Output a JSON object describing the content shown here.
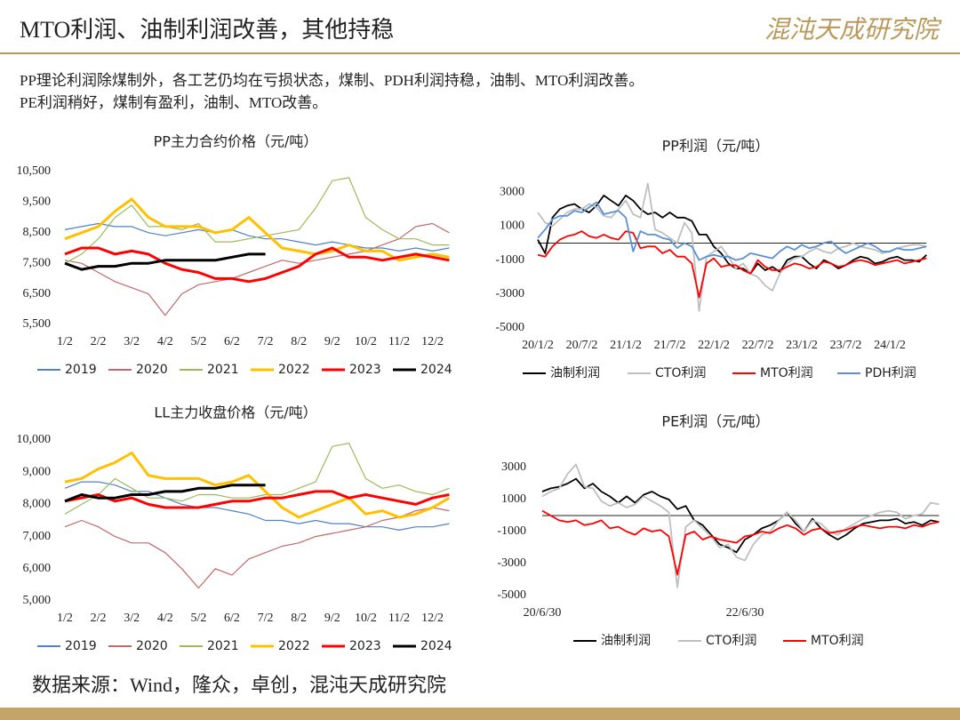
{
  "header": {
    "title": "MTO利润、油制利润改善，其他持稳",
    "logo": "混沌天成研究院"
  },
  "text": [
    "PP理论利润除煤制外，各工艺仍均在亏损状态，煤制、PDH利润持稳，油制、MTO利润改善。",
    "PE利润稍好，煤制有盈利，油制、MTO改善。"
  ],
  "source": "数据来源：Wind，隆众，卓创，混沌天成研究院",
  "chart_data": [
    {
      "type": "line",
      "title": "PP主力合约价格（元/吨）",
      "legend": "bottom",
      "categories": [
        "1/2",
        null,
        "2/2",
        null,
        "3/2",
        null,
        "4/2",
        null,
        "5/2",
        null,
        "6/2",
        null,
        "7/2",
        null,
        "8/2",
        null,
        "9/2",
        null,
        "10/2",
        null,
        "11/2",
        null,
        "12/2",
        null
      ],
      "ylim": [
        5500,
        10500
      ],
      "yticks": [
        {
          "value": 5500,
          "label": "5,500"
        },
        {
          "value": 6500,
          "label": "6,500"
        },
        {
          "value": 7500,
          "label": "7,500"
        },
        {
          "value": 8500,
          "label": "8,500"
        },
        {
          "value": 9500,
          "label": "9,500"
        },
        {
          "value": 10500,
          "label": "10,500"
        }
      ],
      "series": [
        {
          "name": "2019",
          "color": "#4f81c7",
          "width": 1.2,
          "values": [
            8600,
            8700,
            8800,
            8700,
            8700,
            8500,
            8400,
            8500,
            8600,
            8500,
            8600,
            8400,
            8300,
            8300,
            8200,
            8100,
            8200,
            8100,
            8000,
            8000,
            7900,
            8000,
            7900,
            8000
          ]
        },
        {
          "name": "2020",
          "color": "#c0696b",
          "width": 1.2,
          "values": [
            7600,
            7500,
            7200,
            6900,
            6700,
            6500,
            5800,
            6500,
            6800,
            6900,
            7000,
            7200,
            7400,
            7600,
            7500,
            7600,
            7700,
            7800,
            7900,
            8100,
            8300,
            8700,
            8800,
            8500
          ]
        },
        {
          "name": "2021",
          "color": "#9bbb59",
          "width": 1.2,
          "values": [
            7500,
            7800,
            8300,
            9000,
            9400,
            8700,
            8700,
            8600,
            8800,
            8200,
            8200,
            8300,
            8400,
            8500,
            8600,
            9300,
            10200,
            10300,
            9000,
            8600,
            8300,
            8300,
            8100,
            8100
          ]
        },
        {
          "name": "2022",
          "color": "#ffc000",
          "width": 3,
          "values": [
            8300,
            8500,
            8700,
            9200,
            9600,
            9000,
            8700,
            8700,
            8700,
            8500,
            8600,
            9000,
            8500,
            8000,
            7900,
            7800,
            7900,
            8100,
            7900,
            7900,
            7600,
            7700,
            7800,
            7700
          ]
        },
        {
          "name": "2023",
          "color": "#ff0000",
          "width": 3,
          "values": [
            7800,
            8000,
            8000,
            7800,
            7900,
            7800,
            7500,
            7300,
            7200,
            7000,
            7000,
            6900,
            7000,
            7200,
            7400,
            7800,
            8000,
            7700,
            7700,
            7600,
            7700,
            7800,
            7700,
            7600
          ]
        },
        {
          "name": "2024",
          "color": "#000000",
          "width": 3,
          "values": [
            7500,
            7300,
            7400,
            7400,
            7500,
            7500,
            7600,
            7600,
            7600,
            7600,
            7700,
            7800,
            7800,
            null,
            null,
            null,
            null,
            null,
            null,
            null,
            null,
            null,
            null,
            null
          ]
        }
      ]
    },
    {
      "type": "line",
      "title": "PP利润（元/吨）",
      "legend": "bottom",
      "categories": [
        "20/1/2",
        null,
        null,
        null,
        null,
        null,
        "20/7/2",
        null,
        null,
        null,
        null,
        null,
        "21/1/2",
        null,
        null,
        null,
        null,
        null,
        "21/7/2",
        null,
        null,
        null,
        null,
        null,
        "22/1/2",
        null,
        null,
        null,
        null,
        null,
        "22/7/2",
        null,
        null,
        null,
        null,
        null,
        "23/1/2",
        null,
        null,
        null,
        null,
        null,
        "23/7/2",
        null,
        null,
        null,
        null,
        null,
        "24/1/2",
        null,
        null,
        null,
        null,
        null
      ],
      "ylim": [
        -5000,
        4000
      ],
      "yticks": [
        -5000,
        -3000,
        -1000,
        1000,
        3000
      ],
      "series": [
        {
          "name": "油制利润",
          "color": "#000000",
          "width": 1.8,
          "values": [
            200,
            -600,
            1500,
            2000,
            2200,
            2300,
            2000,
            1800,
            2200,
            2800,
            2500,
            2200,
            2800,
            2500,
            2000,
            1700,
            1800,
            1500,
            1800,
            1500,
            1500,
            1300,
            500,
            500,
            -200,
            -600,
            -1200,
            -1500,
            -1500,
            -1800,
            -1200,
            -1600,
            -1400,
            -1700,
            -1000,
            -800,
            -800,
            -1200,
            -1500,
            -1000,
            -1200,
            -1500,
            -1300,
            -1000,
            -800,
            -900,
            -1200,
            -1100,
            -900,
            -800,
            -1000,
            -1000,
            -1100,
            -700
          ]
        },
        {
          "name": "CTO利润",
          "color": "#bfbfbf",
          "width": 1.8,
          "values": [
            1800,
            1200,
            1000,
            1400,
            1800,
            2000,
            2000,
            2300,
            2100,
            1600,
            1500,
            2000,
            2500,
            1700,
            1500,
            3500,
            800,
            600,
            300,
            0,
            1200,
            600,
            -4000,
            -800,
            -500,
            -200,
            -800,
            -1500,
            -1200,
            -1800,
            -2000,
            -2500,
            -2800,
            -1800,
            -1200,
            -900,
            -800,
            -500,
            -300,
            -500,
            -600,
            -300,
            -200,
            0,
            -200,
            -300,
            -400,
            -600,
            -500,
            -300,
            -200,
            -100,
            -100,
            -200
          ]
        },
        {
          "name": "MTO利润",
          "color": "#ff0000",
          "width": 1.8,
          "values": [
            -700,
            -800,
            -200,
            200,
            400,
            500,
            700,
            400,
            300,
            500,
            300,
            200,
            700,
            600,
            -300,
            -200,
            -200,
            -600,
            -400,
            -800,
            -800,
            -1200,
            -3200,
            -1200,
            -900,
            -1400,
            -1300,
            -1300,
            -1600,
            -1800,
            -1000,
            -1400,
            -1600,
            -1600,
            -1400,
            -1200,
            -1300,
            -1500,
            -1400,
            -1100,
            -1200,
            -1400,
            -1300,
            -1100,
            -1000,
            -1100,
            -1300,
            -1200,
            -1100,
            -1000,
            -1200,
            -1100,
            -1000,
            -900
          ]
        },
        {
          "name": "PDH利润",
          "color": "#5b8fd4",
          "width": 1.8,
          "values": [
            300,
            800,
            1400,
            1600,
            1600,
            1900,
            1800,
            2100,
            2400,
            1700,
            1800,
            1900,
            1500,
            -500,
            700,
            500,
            500,
            300,
            200,
            -300,
            0,
            -200,
            -1000,
            -800,
            -700,
            -800,
            -800,
            -1000,
            -900,
            -600,
            -700,
            -800,
            -900,
            -500,
            -200,
            -400,
            -100,
            -300,
            -200,
            0,
            100,
            -300,
            -600,
            -400,
            -200,
            0,
            -200,
            -500,
            -500,
            -300,
            -400,
            -400,
            -300,
            -200
          ]
        }
      ]
    },
    {
      "type": "line",
      "title": "LL主力收盘价格（元/吨）",
      "legend": "bottom",
      "categories": [
        "1/2",
        null,
        "2/2",
        null,
        "3/2",
        null,
        "4/2",
        null,
        "5/2",
        null,
        "6/2",
        null,
        "7/2",
        null,
        "8/2",
        null,
        "9/2",
        null,
        "10/2",
        null,
        "11/2",
        null,
        "12/2",
        null
      ],
      "ylim": [
        5000,
        10000
      ],
      "yticks": [
        {
          "value": 5000,
          "label": "5,000"
        },
        {
          "value": 6000,
          "label": "6,000"
        },
        {
          "value": 7000,
          "label": "7,000"
        },
        {
          "value": 8000,
          "label": "8,000"
        },
        {
          "value": 9000,
          "label": "9,000"
        },
        {
          "value": 10000,
          "label": "10,000"
        }
      ],
      "series": [
        {
          "name": "2019",
          "color": "#4f81c7",
          "width": 1.2,
          "values": [
            8500,
            8700,
            8700,
            8600,
            8400,
            8400,
            8200,
            8000,
            7900,
            7900,
            7800,
            7700,
            7500,
            7500,
            7400,
            7500,
            7400,
            7400,
            7300,
            7300,
            7200,
            7300,
            7300,
            7400
          ]
        },
        {
          "name": "2020",
          "color": "#c0696b",
          "width": 1.2,
          "values": [
            7300,
            7500,
            7300,
            7000,
            6800,
            6800,
            6500,
            6000,
            5400,
            6000,
            5800,
            6300,
            6500,
            6700,
            6800,
            7000,
            7100,
            7200,
            7300,
            7500,
            7600,
            7800,
            7900,
            7800
          ]
        },
        {
          "name": "2021",
          "color": "#9bbb59",
          "width": 1.2,
          "values": [
            7700,
            8000,
            8300,
            8800,
            8500,
            8200,
            8200,
            8100,
            8300,
            8300,
            8200,
            8200,
            8300,
            8300,
            8500,
            8700,
            9800,
            9900,
            8800,
            8500,
            8600,
            8400,
            8300,
            8500
          ]
        },
        {
          "name": "2022",
          "color": "#ffc000",
          "width": 3,
          "values": [
            8700,
            8800,
            9100,
            9300,
            9600,
            8900,
            8800,
            8800,
            8800,
            8600,
            8700,
            8900,
            8400,
            7900,
            7600,
            7800,
            8000,
            8200,
            7700,
            7800,
            7600,
            7700,
            7900,
            8200
          ]
        },
        {
          "name": "2023",
          "color": "#ff0000",
          "width": 3,
          "values": [
            8100,
            8200,
            8300,
            8100,
            8200,
            8000,
            7900,
            7900,
            7900,
            8000,
            8100,
            8100,
            8200,
            8200,
            8300,
            8400,
            8400,
            8200,
            8300,
            8200,
            8100,
            8000,
            8200,
            8300
          ]
        },
        {
          "name": "2024",
          "color": "#000000",
          "width": 3,
          "values": [
            8100,
            8300,
            8200,
            8200,
            8300,
            8300,
            8400,
            8400,
            8500,
            8500,
            8600,
            8600,
            8600,
            null,
            null,
            null,
            null,
            null,
            null,
            null,
            null,
            null,
            null,
            null
          ]
        }
      ]
    },
    {
      "type": "line",
      "title": "PE利润（元/吨）",
      "legend": "bottom",
      "categories": [
        "20/6/30",
        null,
        null,
        null,
        null,
        null,
        null,
        null,
        null,
        null,
        null,
        null,
        null,
        null,
        null,
        null,
        null,
        null,
        null,
        null,
        null,
        null,
        null,
        null,
        "22/6/30",
        null,
        null,
        null,
        null,
        null,
        null,
        null,
        null,
        null,
        null,
        null,
        null,
        null,
        null,
        null,
        null,
        null,
        null,
        null,
        null,
        null,
        null,
        null
      ],
      "ylim": [
        -5000,
        4000
      ],
      "yticks": [
        -5000,
        -3000,
        -1000,
        1000,
        3000
      ],
      "series": [
        {
          "name": "油制利润",
          "color": "#000000",
          "width": 1.8,
          "values": [
            1500,
            1700,
            1800,
            2000,
            2300,
            1700,
            2000,
            1500,
            1200,
            800,
            1200,
            800,
            1300,
            1500,
            1200,
            1000,
            400,
            600,
            -300,
            -600,
            -1200,
            -1800,
            -2000,
            -2300,
            -1500,
            -1200,
            -800,
            -600,
            -300,
            200,
            -500,
            -1000,
            -200,
            -800,
            -1200,
            -1500,
            -1200,
            -800,
            -500,
            -400,
            -300,
            -300,
            -200,
            -500,
            -400,
            -600,
            -300,
            -400
          ]
        },
        {
          "name": "CTO利润",
          "color": "#bfbfbf",
          "width": 1.8,
          "values": [
            1200,
            1500,
            1700,
            2600,
            3200,
            1800,
            1700,
            900,
            600,
            800,
            500,
            700,
            1200,
            900,
            600,
            200,
            -4500,
            -700,
            -300,
            -800,
            -1300,
            -2000,
            -1800,
            -2600,
            -2800,
            -1800,
            -1200,
            -1000,
            -300,
            200,
            -300,
            -1000,
            -300,
            -500,
            -1000,
            -1200,
            -800,
            -500,
            -200,
            0,
            200,
            300,
            200,
            -200,
            0,
            100,
            800,
            700
          ]
        },
        {
          "name": "MTO利润",
          "color": "#ff0000",
          "width": 1.8,
          "values": [
            300,
            0,
            -300,
            -400,
            -300,
            -600,
            -500,
            -300,
            -800,
            -700,
            -1000,
            -1200,
            -800,
            -1000,
            -900,
            -1300,
            -3700,
            -1200,
            -1000,
            -1500,
            -1300,
            -1500,
            -1600,
            -1700,
            -1300,
            -1200,
            -1000,
            -1100,
            -800,
            -600,
            -800,
            -1200,
            -900,
            -800,
            -1100,
            -1000,
            -900,
            -700,
            -600,
            -700,
            -800,
            -700,
            -700,
            -800,
            -600,
            -700,
            -500,
            -400
          ]
        }
      ]
    }
  ]
}
